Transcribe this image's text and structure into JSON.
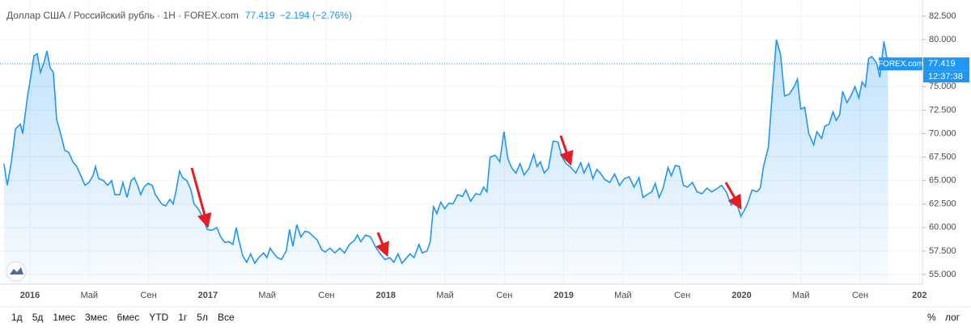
{
  "chart_data": {
    "type": "line",
    "title": "Доллар США / Российский рубль · 1Н · FOREX.com",
    "last_value": 77.419,
    "change": "−2.194 (−2.76%)",
    "source": "FOREX.com",
    "timer": "12:37:38",
    "color": "#2196f3",
    "grid": true,
    "x": [
      -1.75,
      -1.53,
      -1.25,
      -0.98,
      -0.65,
      -0.49,
      -0.16,
      0.05,
      0.27,
      0.49,
      0.71,
      0.93,
      1.15,
      1.36,
      1.58,
      1.8,
      2.07,
      2.35,
      2.62,
      2.89,
      3.16,
      3.44,
      3.71,
      3.98,
      4.25,
      4.42,
      4.64,
      4.96,
      5.24,
      5.51,
      5.73,
      6.06,
      6.27,
      6.55,
      6.82,
      7.04,
      7.26,
      7.47,
      7.69,
      7.96,
      8.24,
      8.46,
      8.67,
      8.89,
      9.16,
      9.44,
      9.66,
      9.87,
      10.09,
      10.31,
      10.58,
      10.86,
      11.07,
      11.35,
      11.62,
      11.95,
      12.27,
      12.6,
      12.87,
      13.15,
      13.42,
      13.69,
      13.91,
      14.13,
      14.35,
      14.62,
      14.89,
      15.16,
      15.44,
      15.76,
      15.98,
      16.2,
      16.42,
      16.69,
      16.97,
      17.29,
      17.51,
      17.73,
      18.0,
      18.27,
      18.55,
      18.82,
      19.15,
      19.37,
      19.69,
      19.91,
      20.24,
      20.57,
      20.89,
      21.22,
      21.55,
      21.87,
      22.09,
      22.31,
      22.64,
      22.97,
      23.29,
      23.62,
      23.95,
      24.27,
      24.55,
      24.82,
      25.09,
      25.37,
      25.64,
      25.91,
      26.24,
      26.46,
      26.78,
      27.0,
      27.22,
      27.44,
      27.71,
      27.98,
      28.26,
      28.53,
      28.86,
      29.18,
      29.4,
      29.73,
      30.06,
      30.38,
      30.6,
      30.82,
      31.04,
      31.37,
      31.69,
      31.97,
      32.24,
      32.51,
      32.78,
      33.06,
      33.33,
      33.66,
      33.98,
      34.2,
      34.42,
      34.69,
      34.97,
      35.29,
      35.62,
      35.89,
      36.17,
      36.49,
      36.82,
      37.15,
      37.37,
      37.69,
      37.97,
      38.24,
      38.46,
      38.79,
      39.11,
      39.44,
      39.77,
      40.09,
      40.42,
      40.75,
      41.08,
      41.35,
      41.62,
      41.95,
      42.17,
      42.44,
      42.71,
      43.04,
      43.26,
      43.53,
      43.8,
      44.08,
      44.35,
      44.68,
      45.0,
      45.33,
      45.66,
      45.99,
      46.31,
      46.64,
      46.97,
      47.3,
      47.62,
      47.95,
      48.17,
      48.39,
      48.71,
      49.04,
      49.26,
      49.48,
      49.8,
      50.08,
      50.35,
      50.62,
      50.9,
      51.22,
      51.55,
      51.77,
      51.99,
      52.26,
      52.53,
      52.86,
      53.08,
      53.4,
      53.62,
      53.9,
      54.17,
      54.39,
      54.61,
      54.82,
      55.1,
      55.37,
      55.64,
      55.91,
      56.13,
      56.35,
      56.57,
      56.79,
      57.11,
      57.33,
      57.6,
      57.88
    ],
    "values": [
      66.8,
      64.5,
      67,
      70.5,
      71,
      70,
      74,
      76,
      78.3,
      78.5,
      76.5,
      77.5,
      78.8,
      77,
      76.5,
      71.5,
      70,
      68.2,
      68,
      67,
      66.5,
      65.5,
      64.5,
      64.8,
      65.5,
      66.5,
      65.2,
      65,
      64.5,
      65,
      63.5,
      63.5,
      64.8,
      63.2,
      65,
      65.3,
      64.5,
      63.5,
      64.3,
      64.7,
      64.5,
      63.5,
      63,
      62.5,
      62.3,
      63,
      62.5,
      64,
      66,
      65.3,
      65,
      64,
      62.5,
      62,
      61.2,
      59.8,
      59.7,
      60,
      59,
      58.4,
      58.5,
      58.2,
      60,
      58.4,
      57,
      56.3,
      57.2,
      56.2,
      56.8,
      57.3,
      56.8,
      57.8,
      57.3,
      56.8,
      56.6,
      57.5,
      59.8,
      58,
      60.3,
      59,
      59.6,
      59.5,
      59,
      58.7,
      57.6,
      57.4,
      57.8,
      57.3,
      57.8,
      57.3,
      58.2,
      58.6,
      59.2,
      58.5,
      59.2,
      59,
      58,
      57.2,
      56.6,
      56.8,
      56.3,
      57.2,
      56.2,
      56.7,
      57.2,
      56.8,
      58.2,
      57.3,
      57.5,
      58.5,
      62.2,
      61.5,
      62.7,
      62,
      62.6,
      62.5,
      63.5,
      63.3,
      64,
      62.8,
      63.6,
      63.5,
      64.3,
      63.8,
      67.5,
      67.7,
      67,
      70.2,
      67.3,
      66.3,
      65.8,
      66.8,
      65.6,
      66.3,
      67.8,
      66.5,
      67,
      65.8,
      66.3,
      69.2,
      69.1,
      67.5,
      66.8,
      66.4,
      65.8,
      66.9,
      65.8,
      66.8,
      65.2,
      66.2,
      65.8,
      65.1,
      64.8,
      65.7,
      64.5,
      65.2,
      65.4,
      64.3,
      65.3,
      63.2,
      63.5,
      63.8,
      64.7,
      63.2,
      64.2,
      66.4,
      65.5,
      66.6,
      66.5,
      64.5,
      64.3,
      64.8,
      63.8,
      63.6,
      64.2,
      63.8,
      64.1,
      64.5,
      63.8,
      62.4,
      62.8,
      61.2,
      61.8,
      62.5,
      64,
      63.8,
      64.2,
      66.5,
      68.5,
      74.5,
      80,
      78.5,
      74,
      74.2,
      75,
      75.8,
      72.6,
      72.8,
      70,
      68.8,
      70.2,
      69.5,
      70.8,
      71,
      72.3,
      71.4,
      72,
      74.5,
      73.3,
      74,
      75,
      73.8,
      75.5,
      75,
      78,
      78.2,
      77.5,
      76,
      79.8,
      77.4
    ],
    "xlim": [
      -2.02,
      60.2
    ],
    "xticks": [
      {
        "value": 0,
        "label": "2016"
      },
      {
        "value": 4,
        "label": "Май"
      },
      {
        "value": 8,
        "label": "Сен"
      },
      {
        "value": 12,
        "label": "2017"
      },
      {
        "value": 16,
        "label": "Май"
      },
      {
        "value": 20,
        "label": "Сен"
      },
      {
        "value": 24,
        "label": "2018"
      },
      {
        "value": 28,
        "label": "Май"
      },
      {
        "value": 32,
        "label": "Сен"
      },
      {
        "value": 36,
        "label": "2019"
      },
      {
        "value": 40,
        "label": "Май"
      },
      {
        "value": 44,
        "label": "Сен"
      },
      {
        "value": 48,
        "label": "2020"
      },
      {
        "value": 52,
        "label": "Май"
      },
      {
        "value": 56,
        "label": "Сен"
      },
      {
        "value": 60,
        "label": "202"
      }
    ],
    "ylim": [
      53.97,
      84.22
    ],
    "yticks": [
      {
        "value": 55,
        "label": "55.000"
      },
      {
        "value": 57.5,
        "label": "57.500"
      },
      {
        "value": 60,
        "label": "60.000"
      },
      {
        "value": 62.5,
        "label": "62.500"
      },
      {
        "value": 65,
        "label": "65.000"
      },
      {
        "value": 67.5,
        "label": "67.500"
      },
      {
        "value": 70,
        "label": "70.000"
      },
      {
        "value": 72.5,
        "label": "72.500"
      },
      {
        "value": 75,
        "label": "75.000"
      },
      {
        "value": 77.5,
        "label": "77.500"
      },
      {
        "value": 80,
        "label": "80.000"
      },
      {
        "value": 82.5,
        "label": "82.500"
      }
    ],
    "ranges": [
      "1д",
      "5д",
      "1мес",
      "3мес",
      "6мес",
      "YTD",
      "1г",
      "5л",
      "Все"
    ],
    "scale_buttons": [
      "%",
      "лог"
    ]
  }
}
